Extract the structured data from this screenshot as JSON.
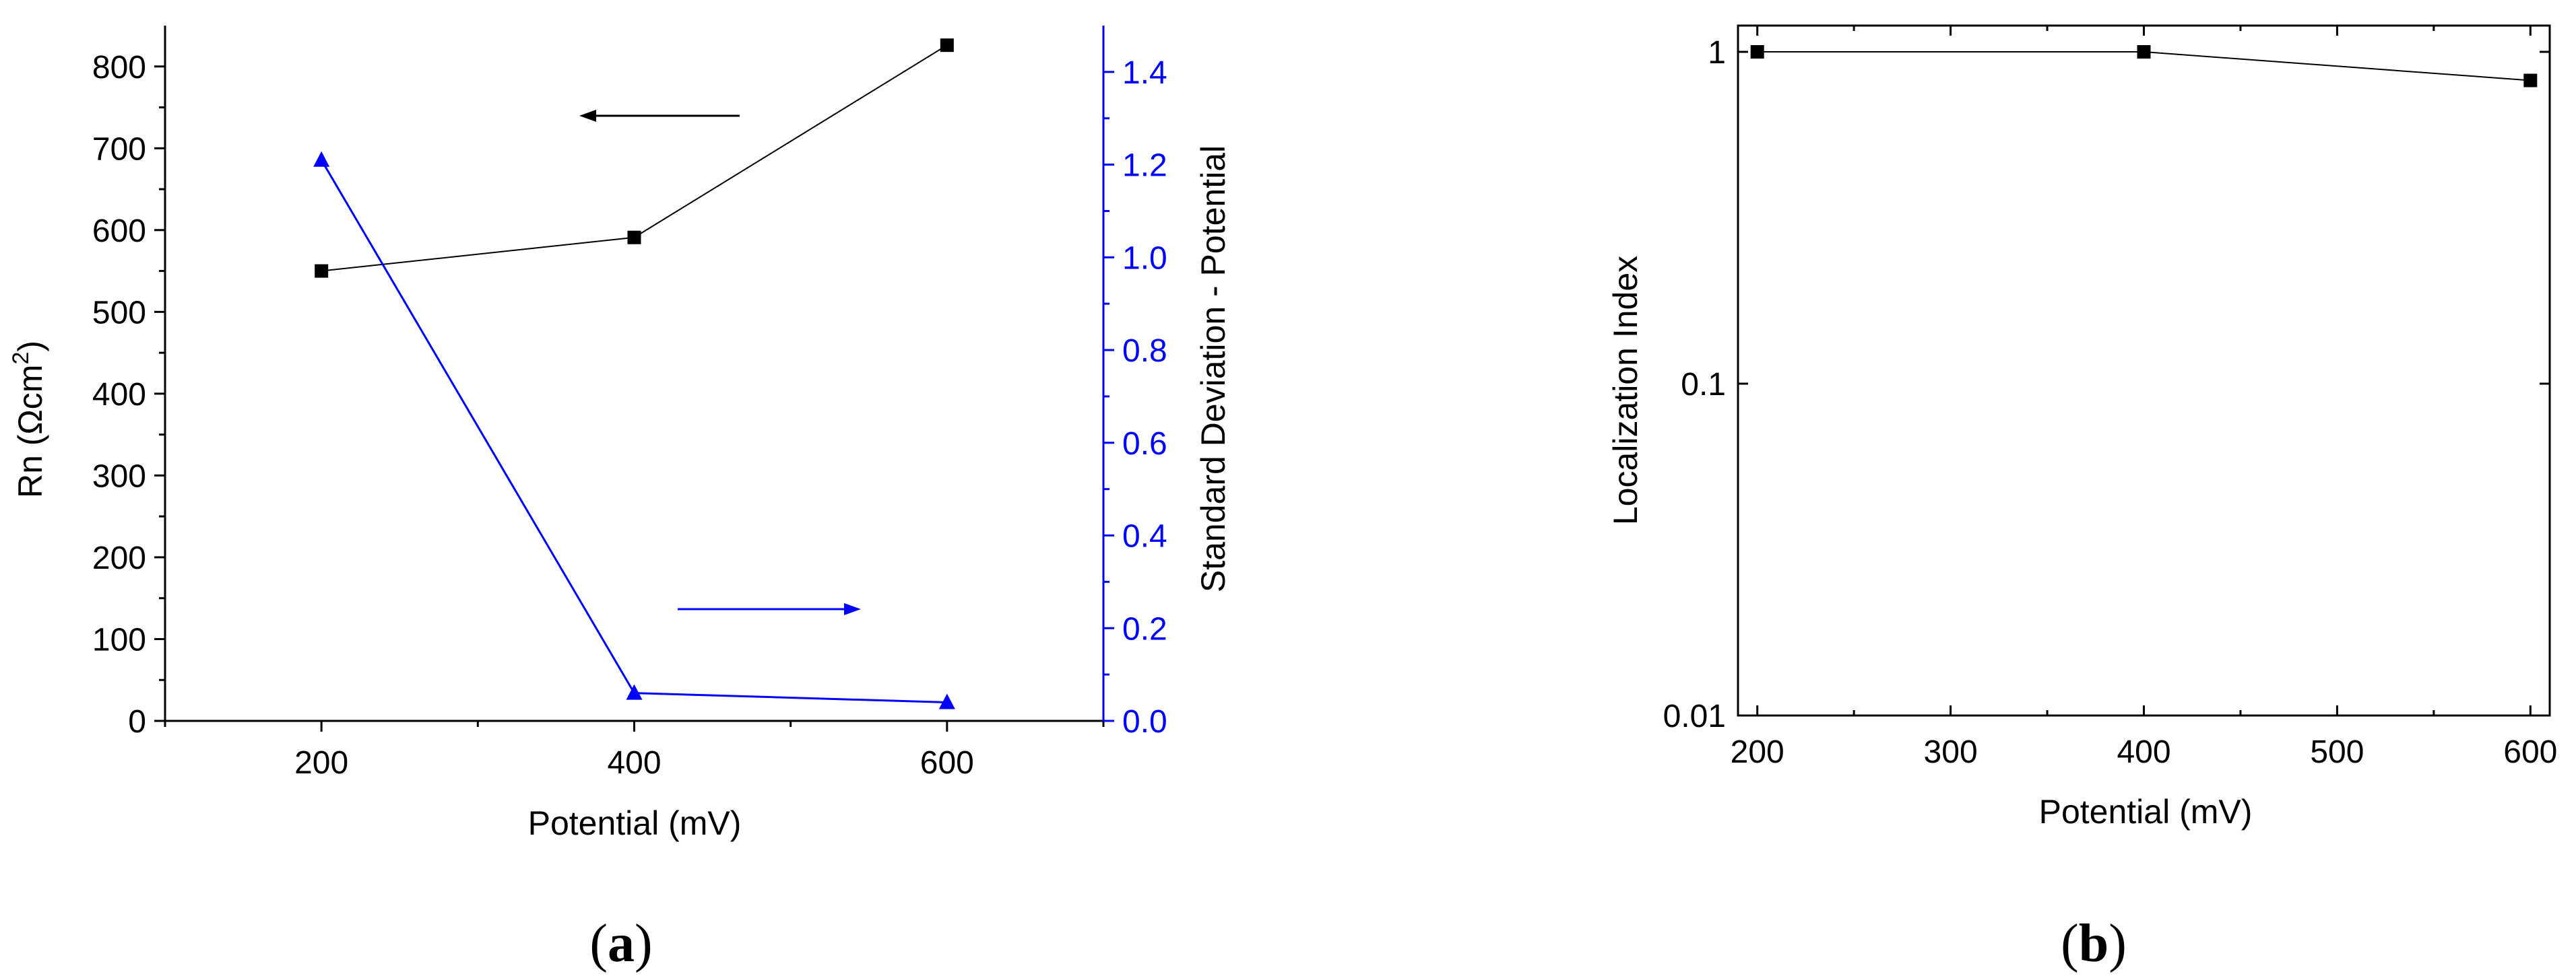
{
  "chart_data": [
    {
      "type": "line",
      "panel_caption": "a",
      "x": [
        200,
        400,
        600
      ],
      "xlabel": "Potential (mV)",
      "xlim": [
        100,
        700
      ],
      "xticks": [
        200,
        400,
        600
      ],
      "ylabel_left": "Rn (Ωcm²)",
      "ylabel_left_parts": {
        "base": "Rn (Ωcm",
        "sup": "2",
        "end": ")"
      },
      "ylim_left": [
        0,
        850
      ],
      "yticks_left": [
        0,
        100,
        200,
        300,
        400,
        500,
        600,
        700,
        800
      ],
      "ylabel_right": "Standard Deviation - Potential",
      "ylim_right": [
        0,
        1.5
      ],
      "yticks_right": [
        "0.0",
        "0.2",
        "0.4",
        "0.6",
        "0.8",
        "1.0",
        "1.2",
        "1.4"
      ],
      "colors": {
        "left_series": "#000000",
        "right_series": "#0000ff"
      },
      "series": [
        {
          "axis": "left",
          "marker": "square",
          "values": [
            550,
            591,
            826
          ]
        },
        {
          "axis": "right",
          "marker": "triangle",
          "values": [
            1.21,
            0.06,
            0.04
          ]
        }
      ],
      "annotations": [
        {
          "type": "arrow",
          "points_to": "left-axis",
          "color": "#000000"
        },
        {
          "type": "arrow",
          "points_to": "right-axis",
          "color": "#0000ff"
        }
      ]
    },
    {
      "type": "line",
      "panel_caption": "b",
      "x": [
        200,
        400,
        600
      ],
      "xlabel": "Potential (mV)",
      "xlim": [
        190,
        610
      ],
      "xticks": [
        200,
        300,
        400,
        500,
        600
      ],
      "ylabel": "Localization Index",
      "yscale": "log",
      "ylim": [
        0.01,
        1.2
      ],
      "yticks": [
        "0.01",
        "0.1",
        "1"
      ],
      "colors": {
        "series": "#000000"
      },
      "series": [
        {
          "marker": "square",
          "values": [
            1.0,
            1.0,
            0.82
          ]
        }
      ]
    }
  ]
}
